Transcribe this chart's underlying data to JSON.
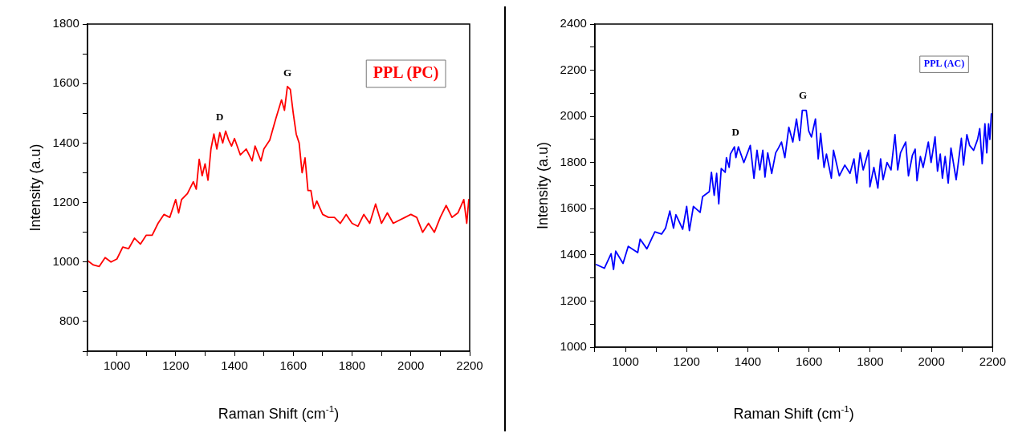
{
  "chart_data": [
    {
      "type": "line",
      "xlabel": "Raman Shift (cm$^{-1}$)",
      "ylabel": "Intensity (a.u)",
      "legend": "top right",
      "grid": false,
      "marker": "none",
      "line_style": "solid",
      "xlim": [
        900,
        2200
      ],
      "ylim": [
        700,
        1800
      ],
      "xticks": [
        {
          "value": 900,
          "label": null
        },
        1000,
        {
          "value": 1100,
          "label": null
        },
        1200,
        {
          "value": 1300,
          "label": null
        },
        1400,
        {
          "value": 1500,
          "label": null
        },
        1600,
        {
          "value": 1700,
          "label": null
        },
        1800,
        {
          "value": 1900,
          "label": null
        },
        2000,
        {
          "value": 2100,
          "label": null
        },
        2200
      ],
      "yticks": [
        {
          "value": 700,
          "label": null
        },
        800,
        {
          "value": 900,
          "label": null
        },
        1000,
        {
          "value": 1100,
          "label": null
        },
        1200,
        {
          "value": 1300,
          "label": null
        },
        1400,
        {
          "value": 1500,
          "label": null
        },
        1600,
        {
          "value": 1700,
          "label": null
        },
        1800
      ],
      "annotations": [
        {
          "text": "D",
          "x": 1350,
          "y": 1440
        },
        {
          "text": "G",
          "x": 1580,
          "y": 1590
        }
      ],
      "series": [
        {
          "name": "PPL (PC)",
          "color": "#ff0000",
          "x": [
            900,
            920,
            940,
            960,
            980,
            1000,
            1020,
            1040,
            1060,
            1080,
            1100,
            1120,
            1140,
            1160,
            1180,
            1200,
            1210,
            1220,
            1240,
            1260,
            1270,
            1280,
            1290,
            1300,
            1310,
            1320,
            1330,
            1340,
            1350,
            1360,
            1370,
            1380,
            1390,
            1400,
            1420,
            1440,
            1460,
            1470,
            1490,
            1500,
            1520,
            1540,
            1560,
            1570,
            1580,
            1590,
            1600,
            1610,
            1620,
            1630,
            1640,
            1650,
            1660,
            1670,
            1680,
            1700,
            1720,
            1740,
            1760,
            1780,
            1800,
            1820,
            1840,
            1860,
            1880,
            1900,
            1920,
            1940,
            1960,
            1980,
            2000,
            2020,
            2040,
            2060,
            2080,
            2100,
            2120,
            2140,
            2160,
            2180,
            2190,
            2197
          ],
          "values": [
            1005,
            990,
            985,
            1015,
            1000,
            1010,
            1050,
            1045,
            1080,
            1060,
            1090,
            1090,
            1130,
            1160,
            1150,
            1210,
            1165,
            1210,
            1230,
            1270,
            1245,
            1345,
            1290,
            1330,
            1275,
            1380,
            1430,
            1380,
            1435,
            1400,
            1440,
            1410,
            1390,
            1415,
            1360,
            1380,
            1340,
            1390,
            1340,
            1380,
            1410,
            1480,
            1545,
            1510,
            1590,
            1580,
            1500,
            1430,
            1400,
            1300,
            1350,
            1240,
            1240,
            1180,
            1205,
            1160,
            1150,
            1150,
            1130,
            1160,
            1130,
            1120,
            1160,
            1130,
            1195,
            1130,
            1165,
            1130,
            1140,
            1150,
            1160,
            1150,
            1100,
            1130,
            1100,
            1150,
            1190,
            1150,
            1165,
            1210,
            1130,
            1210
          ]
        }
      ]
    },
    {
      "type": "line",
      "xlabel": "Raman Shift (cm$^{-1}$)",
      "ylabel": "Intensity (a.u)",
      "legend": "top right",
      "grid": false,
      "marker": "none",
      "line_style": "solid",
      "xlim": [
        900,
        2200
      ],
      "ylim": [
        1000,
        2400
      ],
      "xticks": [
        {
          "value": 900,
          "label": null
        },
        1000,
        {
          "value": 1100,
          "label": null
        },
        1200,
        {
          "value": 1300,
          "label": null
        },
        1400,
        {
          "value": 1500,
          "label": null
        },
        1600,
        {
          "value": 1700,
          "label": null
        },
        1800,
        {
          "value": 1900,
          "label": null
        },
        2000,
        {
          "value": 2100,
          "label": null
        },
        2200
      ],
      "yticks": [
        1000,
        {
          "value": 1100,
          "label": null
        },
        1200,
        {
          "value": 1300,
          "label": null
        },
        1400,
        {
          "value": 1500,
          "label": null
        },
        1600,
        {
          "value": 1700,
          "label": null
        },
        1800,
        {
          "value": 1900,
          "label": null
        },
        2000,
        {
          "value": 2100,
          "label": null
        },
        2200,
        {
          "value": 2300,
          "label": null
        },
        2400
      ],
      "annotations": [
        {
          "text": "D",
          "x": 1360,
          "y": 1870
        },
        {
          "text": "G",
          "x": 1580,
          "y": 2030
        }
      ],
      "series": [
        {
          "name": "PPL (AC)",
          "color": "#0000ff",
          "x": [
            905,
            931,
            953,
            961,
            968,
            992,
            1009,
            1040,
            1048,
            1070,
            1096,
            1118,
            1131,
            1145,
            1157,
            1165,
            1187,
            1200,
            1209,
            1222,
            1244,
            1252,
            1274,
            1281,
            1290,
            1298,
            1305,
            1313,
            1326,
            1330,
            1339,
            1343,
            1356,
            1361,
            1369,
            1387,
            1408,
            1420,
            1430,
            1439,
            1449,
            1456,
            1465,
            1478,
            1491,
            1500,
            1510,
            1521,
            1534,
            1547,
            1559,
            1569,
            1578,
            1591,
            1599,
            1608,
            1621,
            1630,
            1638,
            1649,
            1657,
            1673,
            1680,
            1699,
            1717,
            1734,
            1747,
            1756,
            1767,
            1777,
            1795,
            1799,
            1812,
            1825,
            1834,
            1842,
            1855,
            1868,
            1881,
            1890,
            1899,
            1916,
            1925,
            1938,
            1947,
            1953,
            1964,
            1973,
            1990,
            1999,
            2012,
            2020,
            2029,
            2036,
            2045,
            2055,
            2064,
            2081,
            2098,
            2105,
            2116,
            2125,
            2138,
            2151,
            2158,
            2166,
            2175,
            2181,
            2187,
            2191,
            2196
          ],
          "values": [
            1358,
            1342,
            1405,
            1337,
            1416,
            1363,
            1437,
            1410,
            1468,
            1426,
            1500,
            1490,
            1516,
            1590,
            1516,
            1574,
            1511,
            1610,
            1505,
            1610,
            1584,
            1652,
            1674,
            1758,
            1658,
            1753,
            1621,
            1774,
            1758,
            1821,
            1779,
            1837,
            1868,
            1821,
            1868,
            1800,
            1874,
            1732,
            1853,
            1768,
            1853,
            1737,
            1842,
            1753,
            1842,
            1863,
            1889,
            1821,
            1953,
            1889,
            1989,
            1895,
            2026,
            2026,
            1937,
            1911,
            1989,
            1816,
            1926,
            1779,
            1837,
            1732,
            1853,
            1742,
            1789,
            1753,
            1816,
            1711,
            1842,
            1768,
            1853,
            1695,
            1779,
            1689,
            1816,
            1726,
            1800,
            1768,
            1921,
            1768,
            1842,
            1889,
            1742,
            1832,
            1858,
            1721,
            1826,
            1779,
            1889,
            1800,
            1911,
            1763,
            1837,
            1732,
            1826,
            1711,
            1863,
            1726,
            1905,
            1789,
            1921,
            1874,
            1853,
            1900,
            1947,
            1795,
            1968,
            1842,
            1968,
            1900,
            2011
          ]
        }
      ]
    }
  ]
}
